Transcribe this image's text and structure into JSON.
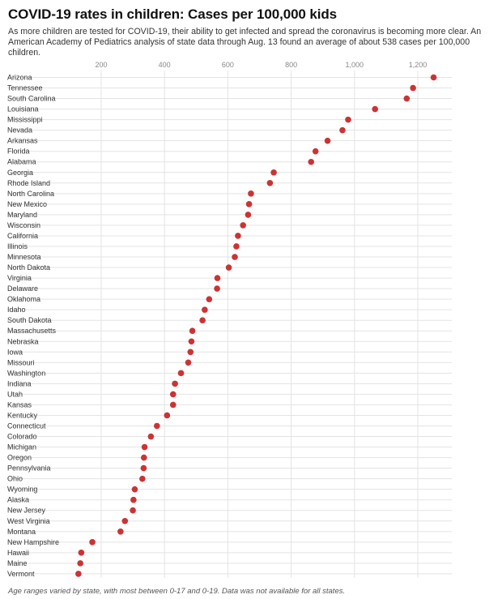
{
  "title": "COVID-19 rates in children: Cases per 100,000 kids",
  "subtitle": "As more children are tested for COVID-19, their ability to get infected and spread the coronavirus is becoming more clear. An American Academy of Pediatrics analysis of state data through Aug. 13 found an average of about 538 cases per 100,000 children.",
  "footnote": "Age ranges varied by state, with most between 0-17 and 0-19. Data was not available for all states.",
  "colors": {
    "dot": "#cc3333",
    "grid": "#e3e3e3"
  },
  "chart_data": {
    "type": "scatter",
    "title": "COVID-19 rates in children: Cases per 100,000 kids",
    "xlabel": "",
    "ylabel": "",
    "xlim": [
      0,
      1300
    ],
    "xticks": [
      200,
      400,
      600,
      800,
      1000,
      1200
    ],
    "xtick_labels": [
      "200",
      "400",
      "600",
      "800",
      "1,000",
      "1,200"
    ],
    "grid": true,
    "categories": [
      "Arizona",
      "Tennessee",
      "South Carolina",
      "Louisiana",
      "Mississippi",
      "Nevada",
      "Arkansas",
      "Florida",
      "Alabama",
      "Georgia",
      "Rhode Island",
      "North Carolina",
      "New Mexico",
      "Maryland",
      "Wisconsin",
      "California",
      "Illinois",
      "Minnesota",
      "North Dakota",
      "Virginia",
      "Delaware",
      "Oklahoma",
      "Idaho",
      "South Dakota",
      "Massachusetts",
      "Nebraska",
      "Iowa",
      "Missouri",
      "Washington",
      "Indiana",
      "Utah",
      "Kansas",
      "Kentucky",
      "Connecticut",
      "Colorado",
      "Michigan",
      "Oregon",
      "Pennsylvania",
      "Ohio",
      "Wyoming",
      "Alaska",
      "New Jersey",
      "West Virginia",
      "Montana",
      "New Hampshire",
      "Hawaii",
      "Maine",
      "Vermont"
    ],
    "values": [
      1250,
      1185,
      1165,
      1065,
      980,
      962,
      915,
      877,
      863,
      745,
      733,
      673,
      667,
      664,
      648,
      632,
      627,
      622,
      603,
      567,
      566,
      541,
      527,
      520,
      488,
      485,
      482,
      475,
      452,
      433,
      427,
      427,
      408,
      376,
      357,
      337,
      335,
      334,
      330,
      306,
      302,
      300,
      275,
      261,
      172,
      137,
      134,
      128
    ]
  }
}
